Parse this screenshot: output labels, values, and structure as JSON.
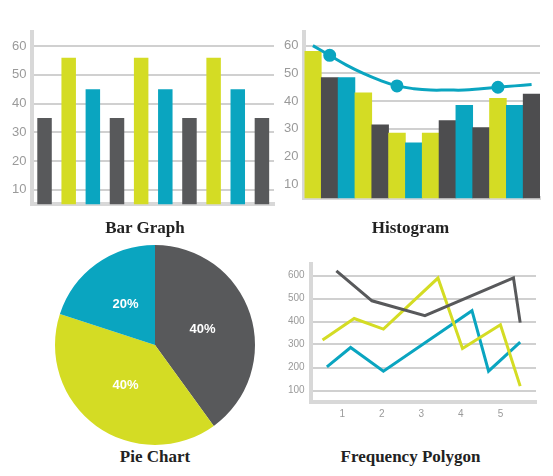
{
  "chart_data": [
    {
      "type": "bar",
      "title": "Bar Graph",
      "categories": [
        null,
        null,
        null,
        null,
        null,
        null,
        null,
        null,
        null,
        null
      ],
      "values": [
        35,
        56,
        45,
        35,
        56,
        45,
        35,
        56,
        45,
        35
      ],
      "colors": [
        "#58595b",
        "#d4dc24",
        "#0aa5c0",
        "#58595b",
        "#d4dc24",
        "#0aa5c0",
        "#58595b",
        "#d4dc24",
        "#0aa5c0",
        "#58595b"
      ],
      "ylim": [
        5,
        65
      ],
      "yticks": [
        10,
        20,
        30,
        40,
        50,
        60
      ],
      "grid": true,
      "tick_labels": "y"
    },
    {
      "type": "bar",
      "title": "Histogram",
      "categories": [
        null,
        null,
        null,
        null,
        null,
        null,
        null,
        null,
        null,
        null,
        null,
        null,
        null,
        null
      ],
      "series": [
        {
          "type": "bar",
          "values": [
            58,
            48.5,
            48.5,
            43,
            31.5,
            28.5,
            25,
            28.5,
            33,
            38.5,
            30.5,
            41,
            38.5,
            42.5
          ],
          "colors": [
            "#d4dc24",
            "#4d4d4f",
            "#0aa5c0",
            "#d4dc24",
            "#4d4d4f",
            "#d4dc24",
            "#0aa5c0",
            "#d4dc24",
            "#4d4d4f",
            "#0aa5c0",
            "#4d4d4f",
            "#d4dc24",
            "#0aa5c0",
            "#4d4d4f"
          ]
        },
        {
          "type": "line",
          "color": "#0aa5c0",
          "marker": "none",
          "line_style": "solid",
          "values": [
            60,
            56.5,
            53,
            50,
            47.5,
            45.5,
            44.5,
            44,
            44,
            44,
            44.5,
            45,
            45.5,
            46
          ]
        },
        {
          "type": "line",
          "color": "#0aa5c0",
          "marker": "circle",
          "line_style": "none",
          "values": [
            null,
            56.5,
            null,
            null,
            null,
            45.5,
            null,
            null,
            null,
            null,
            null,
            45,
            null,
            null
          ]
        }
      ],
      "ylim": [
        5,
        65
      ],
      "yticks": [
        10,
        20,
        30,
        40,
        50,
        60
      ],
      "grid": true,
      "tick_labels": "y"
    },
    {
      "type": "pie",
      "title": "Pie Chart",
      "values": [
        40,
        40,
        20
      ],
      "value_labels": [
        "40%",
        "40%",
        "20%"
      ],
      "colors": [
        "#58595b",
        "#d4dc24",
        "#0aa5c0"
      ],
      "data_labels": true,
      "tick_labels": false
    },
    {
      "type": "line",
      "title": "Frequency Polygon",
      "series": [
        {
          "color": "#58595b",
          "x": [
            0.85,
            1.75,
            3.09,
            5.33,
            5.5
          ],
          "values": [
            620,
            490,
            425,
            590,
            395
          ]
        },
        {
          "color": "#d4dc24",
          "x": [
            0.5,
            1.3,
            2.04,
            3.42,
            4.04,
            5.0,
            5.5
          ],
          "values": [
            320,
            413,
            367,
            589,
            283,
            386,
            119
          ]
        },
        {
          "color": "#0aa5c0",
          "x": [
            0.61,
            1.21,
            2.04,
            4.28,
            4.7,
            5.5
          ],
          "values": [
            203,
            287,
            184,
            447,
            184,
            310
          ]
        }
      ],
      "xlim": [
        0.2,
        5.9
      ],
      "xticks": [
        1,
        2,
        3,
        4,
        5
      ],
      "ylim": [
        50,
        650
      ],
      "yticks": [
        100,
        200,
        300,
        400,
        500,
        600
      ],
      "grid": true,
      "marker": "none"
    }
  ]
}
